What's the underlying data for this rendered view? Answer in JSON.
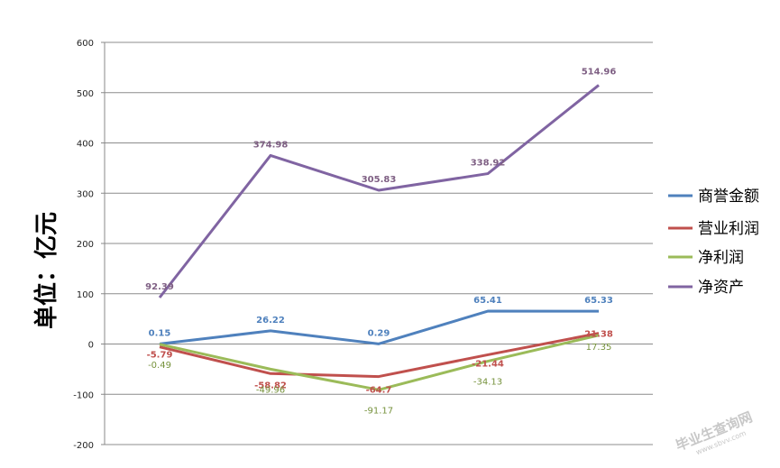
{
  "chart_data": {
    "type": "line",
    "ylabel": "单位：亿元",
    "ylim": [
      -200,
      600
    ],
    "yticks": [
      "600",
      "500",
      "400",
      "300",
      "200",
      "100",
      "0",
      "-100",
      "-200"
    ],
    "ytick_values": [
      600,
      500,
      400,
      300,
      200,
      100,
      0,
      -100,
      -200
    ],
    "categories_count": 5,
    "grid": true,
    "legend_placement": "right",
    "series": [
      {
        "name": "商誉金额",
        "color": "#4f81bd",
        "values": [
          0.15,
          26.22,
          0.29,
          65.41,
          65.33
        ],
        "labels": [
          "0.15",
          "26.22",
          "0.29",
          "65.41",
          "65.33"
        ],
        "label_color": "#4f81bd",
        "label_bold": true
      },
      {
        "name": "营业利润",
        "color": "#c0504d",
        "values": [
          -5.79,
          -58.82,
          -64.7,
          -21.44,
          21.38
        ],
        "labels": [
          "-5.79",
          "-58.82",
          "-64.7",
          "-21.44",
          "21.38"
        ],
        "label_color": "#c0504d",
        "label_bold": true
      },
      {
        "name": "净利润",
        "color": "#9bbb59",
        "values": [
          -0.49,
          -49.96,
          -91.17,
          -34.13,
          17.35
        ],
        "labels": [
          "-0.49",
          "-49.96",
          "-91.17",
          "-34.13",
          "17.35"
        ],
        "label_color": "#76923c",
        "label_bold": false
      },
      {
        "name": "净资产",
        "color": "#8064a2",
        "values": [
          92.39,
          374.98,
          305.83,
          338.92,
          514.96
        ],
        "labels": [
          "92.39",
          "374.98",
          "305.83",
          "338.92",
          "514.96"
        ],
        "label_color": "#7f6084",
        "label_bold": true
      }
    ]
  },
  "watermark": {
    "text": "毕业生查询网",
    "url": "www.sbvv.com"
  }
}
